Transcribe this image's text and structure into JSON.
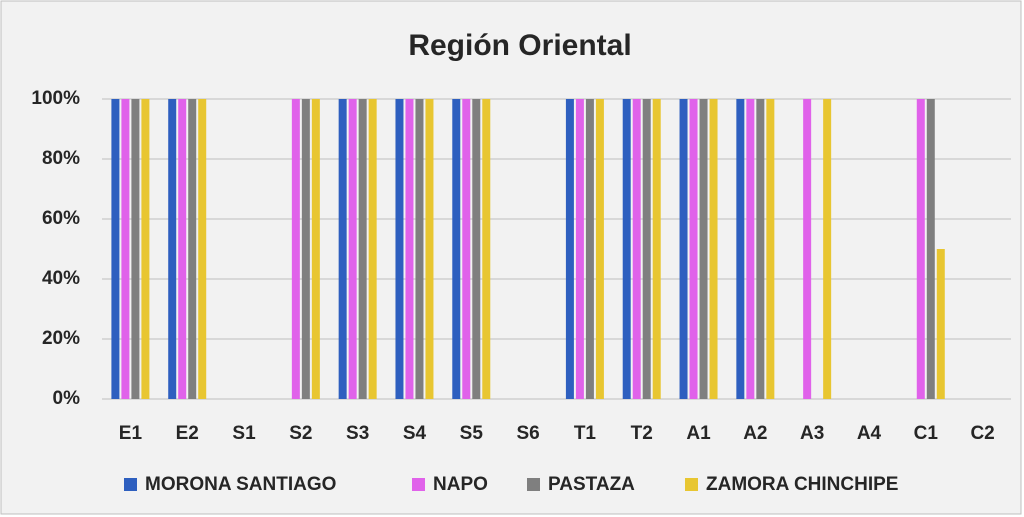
{
  "chart_data": {
    "type": "bar",
    "title": "Región Oriental",
    "categories": [
      "E1",
      "E2",
      "S1",
      "S2",
      "S3",
      "S4",
      "S5",
      "S6",
      "T1",
      "T2",
      "A1",
      "A2",
      "A3",
      "A4",
      "C1",
      "C2"
    ],
    "series": [
      {
        "name": "MORONA SANTIAGO",
        "color": "#2e5fbf",
        "values": [
          100,
          100,
          0,
          0,
          100,
          100,
          100,
          0,
          100,
          100,
          100,
          100,
          0,
          0,
          0,
          0
        ]
      },
      {
        "name": "NAPO",
        "color": "#e062ea",
        "values": [
          100,
          100,
          0,
          100,
          100,
          100,
          100,
          0,
          100,
          100,
          100,
          100,
          100,
          0,
          100,
          0
        ]
      },
      {
        "name": "PASTAZA",
        "color": "#7f7f7f",
        "values": [
          100,
          100,
          0,
          100,
          100,
          100,
          100,
          0,
          100,
          100,
          100,
          100,
          0,
          0,
          100,
          0
        ]
      },
      {
        "name": "ZAMORA CHINCHIPE",
        "color": "#e8c631",
        "values": [
          100,
          100,
          0,
          100,
          100,
          100,
          100,
          0,
          100,
          100,
          100,
          100,
          100,
          0,
          50,
          0
        ]
      }
    ],
    "ylim": [
      0,
      100
    ],
    "yticks": [
      {
        "value": 0,
        "label": "0%"
      },
      {
        "value": 20,
        "label": "20%"
      },
      {
        "value": 40,
        "label": "40%"
      },
      {
        "value": 60,
        "label": "60%"
      },
      {
        "value": 80,
        "label": "80%"
      },
      {
        "value": 100,
        "label": "100%"
      }
    ],
    "grid": true
  }
}
